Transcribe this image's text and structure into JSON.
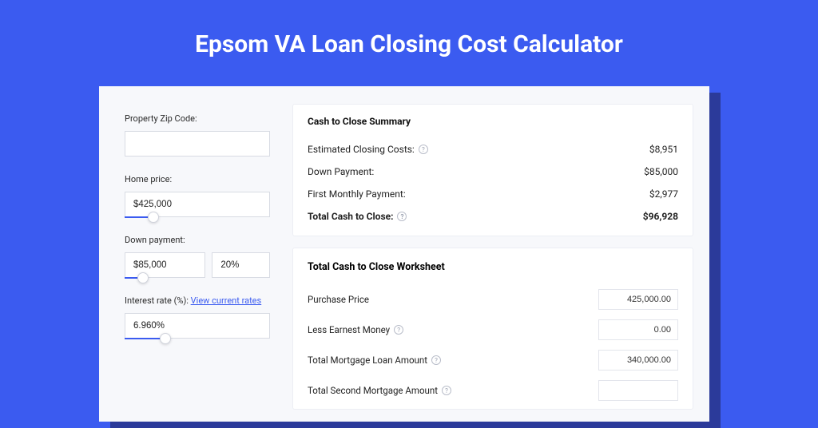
{
  "colors": {
    "page_bg": "#3b5bf0",
    "card_bg": "#f7f8fb",
    "shadow_bg": "#2b3a9a",
    "panel_bg": "#ffffff",
    "border": "#d8dbe3",
    "link": "#3b5bf0",
    "text": "#222222"
  },
  "title": "Epsom VA Loan Closing Cost Calculator",
  "inputs": {
    "zip": {
      "label": "Property Zip Code:",
      "value": ""
    },
    "home_price": {
      "label": "Home price:",
      "value": "$425,000",
      "slider_pct": 20
    },
    "down_payment": {
      "label": "Down payment:",
      "value": "$85,000",
      "pct_value": "20%",
      "slider_pct": 23
    },
    "interest_rate": {
      "label": "Interest rate (%):",
      "link_text": "View current rates",
      "value": "6.960%",
      "slider_pct": 28
    }
  },
  "summary": {
    "title": "Cash to Close Summary",
    "rows": [
      {
        "label": "Estimated Closing Costs:",
        "help": true,
        "value": "$8,951",
        "bold": false
      },
      {
        "label": "Down Payment:",
        "help": false,
        "value": "$85,000",
        "bold": false
      },
      {
        "label": "First Monthly Payment:",
        "help": false,
        "value": "$2,977",
        "bold": false
      },
      {
        "label": "Total Cash to Close:",
        "help": true,
        "value": "$96,928",
        "bold": true
      }
    ]
  },
  "worksheet": {
    "title": "Total Cash to Close Worksheet",
    "rows": [
      {
        "label": "Purchase Price",
        "help": false,
        "value": "425,000.00"
      },
      {
        "label": "Less Earnest Money",
        "help": true,
        "value": "0.00"
      },
      {
        "label": "Total Mortgage Loan Amount",
        "help": true,
        "value": "340,000.00"
      },
      {
        "label": "Total Second Mortgage Amount",
        "help": true,
        "value": ""
      }
    ]
  }
}
